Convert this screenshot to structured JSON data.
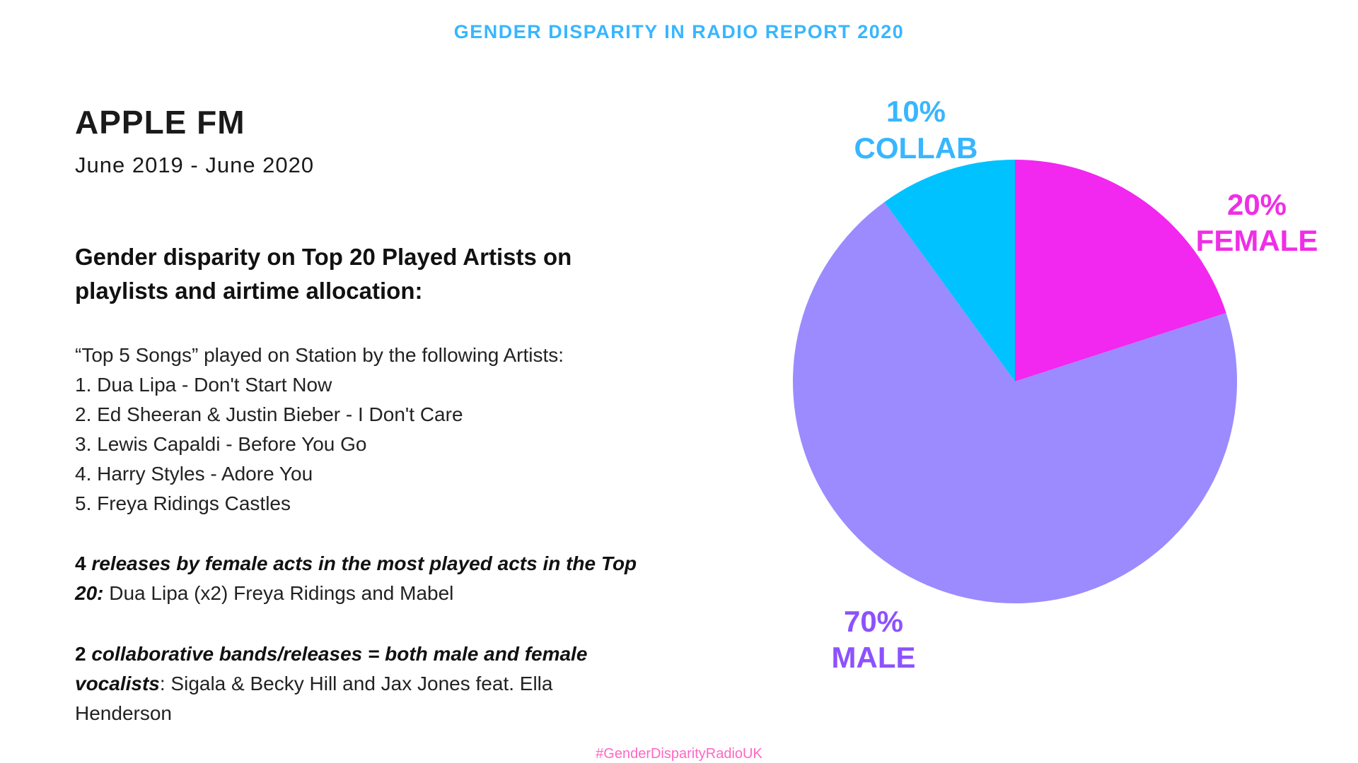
{
  "header": "GENDER DISPARITY IN RADIO REPORT 2020",
  "title": "APPLE FM",
  "subtitle": "June 2019 - June 2020",
  "heading": "Gender disparity on Top 20 Played Artists on playlists and airtime allocation:",
  "list_intro": "“Top 5 Songs” played on Station by the following Artists:",
  "list": [
    "1. Dua Lipa - Don't Start Now",
    "2. Ed Sheeran & Justin Bieber - I Don't Care",
    "3. Lewis Capaldi - Before You Go",
    "4. Harry Styles - Adore You",
    "5. Freya Ridings Castles"
  ],
  "paragraphs": [
    {
      "lead": "4",
      "emphasis": "releases by female acts in the most played acts in the Top 20:",
      "text": "Dua Lipa (x2) Freya Ridings and Mabel"
    },
    {
      "lead": "2",
      "emphasis": "collaborative bands/releases = both male and female vocalists",
      "text": ": Sigala & Becky Hill and Jax Jones feat. Ella Henderson"
    }
  ],
  "footer": "#GenderDisparityRadioUK",
  "chart_data": {
    "type": "pie",
    "categories": [
      "FEMALE",
      "MALE",
      "COLLAB"
    ],
    "values": [
      20,
      70,
      10
    ],
    "value_labels": [
      "20%",
      "70%",
      "10%"
    ],
    "colors": [
      "#f227f0",
      "#9b8bff",
      "#00c2ff"
    ],
    "label_colors": [
      "#ef2ee6",
      "#8c52ff",
      "#38b6ff"
    ]
  }
}
